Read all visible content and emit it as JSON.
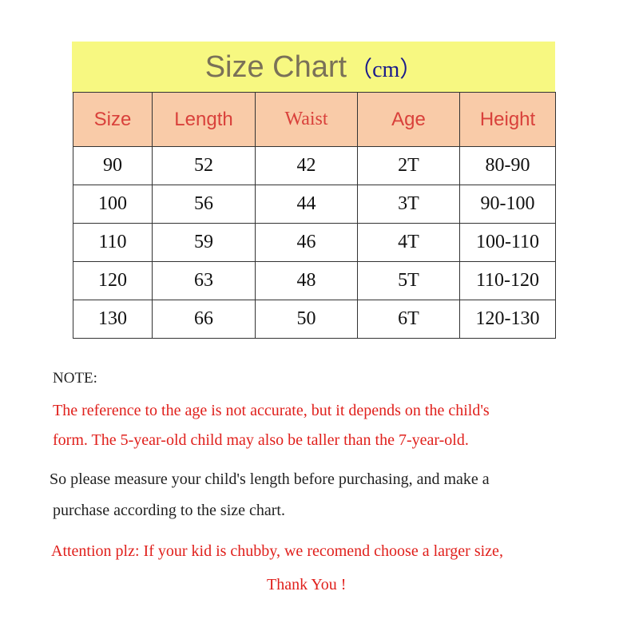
{
  "title": {
    "text": "Size Chart",
    "unit": "（cm）"
  },
  "table": {
    "headers": [
      "Size",
      "Length",
      "Waist",
      "Age",
      "Height"
    ],
    "rows": [
      [
        "90",
        "52",
        "42",
        "2T",
        "80-90"
      ],
      [
        "100",
        "56",
        "44",
        "3T",
        "90-100"
      ],
      [
        "110",
        "59",
        "46",
        "4T",
        "100-110"
      ],
      [
        "120",
        "63",
        "48",
        "5T",
        "110-120"
      ],
      [
        "130",
        "66",
        "50",
        "6T",
        "120-130"
      ]
    ]
  },
  "notes": {
    "label": "NOTE:",
    "red1": "The reference to the age is not accurate, but it depends on the child's",
    "red2": "form. The 5-year-old child may also be taller than the 7-year-old.",
    "black1": "So please measure your child's length before purchasing, and make a",
    "black2": "purchase according to the size chart.",
    "attention": "Attention plz: If your kid is chubby, we recomend choose a larger size,",
    "thanks": "Thank You !"
  },
  "colors": {
    "title_bg": "#f7f881",
    "header_bg": "#f9cba8",
    "header_text": "#d9413b",
    "note_red": "#e0201c"
  }
}
